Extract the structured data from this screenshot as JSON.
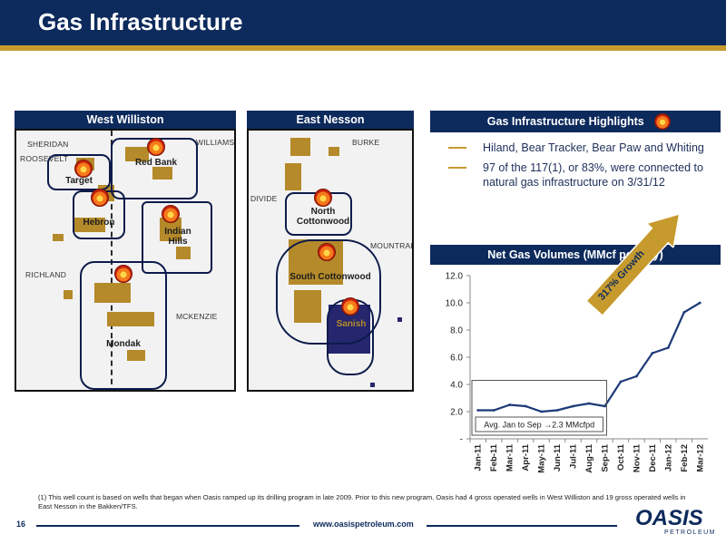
{
  "slide": {
    "title": "Gas Infrastructure",
    "page_number": "16",
    "website": "www.oasispetroleum.com",
    "logo_text": "OASIS",
    "logo_subtext": "PETROLEUM",
    "footnote": "(1) This well count is based on wells that began when Oasis ramped up its drilling program in late 2009.  Prior to this new program, Oasis had 4 gross operated wells in West Williston and  19 gross operated wells in  East Nesson in the Bakken/TFS."
  },
  "west_williston": {
    "header": "West Williston",
    "county_labels": [
      "SHERIDAN",
      "ROOSEVELT",
      "WILLIAMS",
      "RICHLAND",
      "MCKENZIE"
    ],
    "fields": [
      "Red Bank",
      "Target",
      "Hebron",
      "Indian\nHills",
      "Mondak"
    ]
  },
  "east_nesson": {
    "header": "East Nesson",
    "county_labels": [
      "BURKE",
      "DIVIDE",
      "MOUNTRAIL"
    ],
    "fields": [
      "North\nCottonwood",
      "South Cottonwood",
      "Sanish"
    ]
  },
  "highlights": {
    "header": "Gas Infrastructure Highlights",
    "bullets": [
      "Hiland, Bear Tracker, Bear Paw and Whiting",
      "97 of the 117(1), or 83%, were connected to natural gas infrastructure on 3/31/12"
    ]
  },
  "colors": {
    "navy": "#0d2a5c",
    "gold": "#c79a2e",
    "acreage_gold": "#b58a2a",
    "acreage_navy": "#25266e",
    "line_series": "#1c3a78"
  },
  "chart_data": {
    "type": "line",
    "title": "Net Gas Volumes (MMcf per day)",
    "categories": [
      "Jan-11",
      "Feb-11",
      "Mar-11",
      "Apr-11",
      "May-11",
      "Jun-11",
      "Jul-11",
      "Aug-11",
      "Sep-11",
      "Oct-11",
      "Nov-11",
      "Dec-11",
      "Jan-12",
      "Feb-12",
      "Mar-12"
    ],
    "series": [
      {
        "values": [
          2.1,
          2.1,
          2.5,
          2.4,
          2.0,
          2.1,
          2.4,
          2.6,
          2.4,
          4.2,
          4.6,
          6.3,
          6.7,
          9.3,
          10.0
        ]
      }
    ],
    "ylim": [
      0,
      12
    ],
    "y_ticks": [
      "-",
      "2.0",
      "4.0",
      "6.0",
      "8.0",
      "10.0",
      "12.0"
    ],
    "grid": false,
    "legend": "none",
    "annotations": {
      "avg_box": "Avg. Jan to Sep →2.3 MMcfpd",
      "growth_arrow": "317% Growth"
    }
  }
}
